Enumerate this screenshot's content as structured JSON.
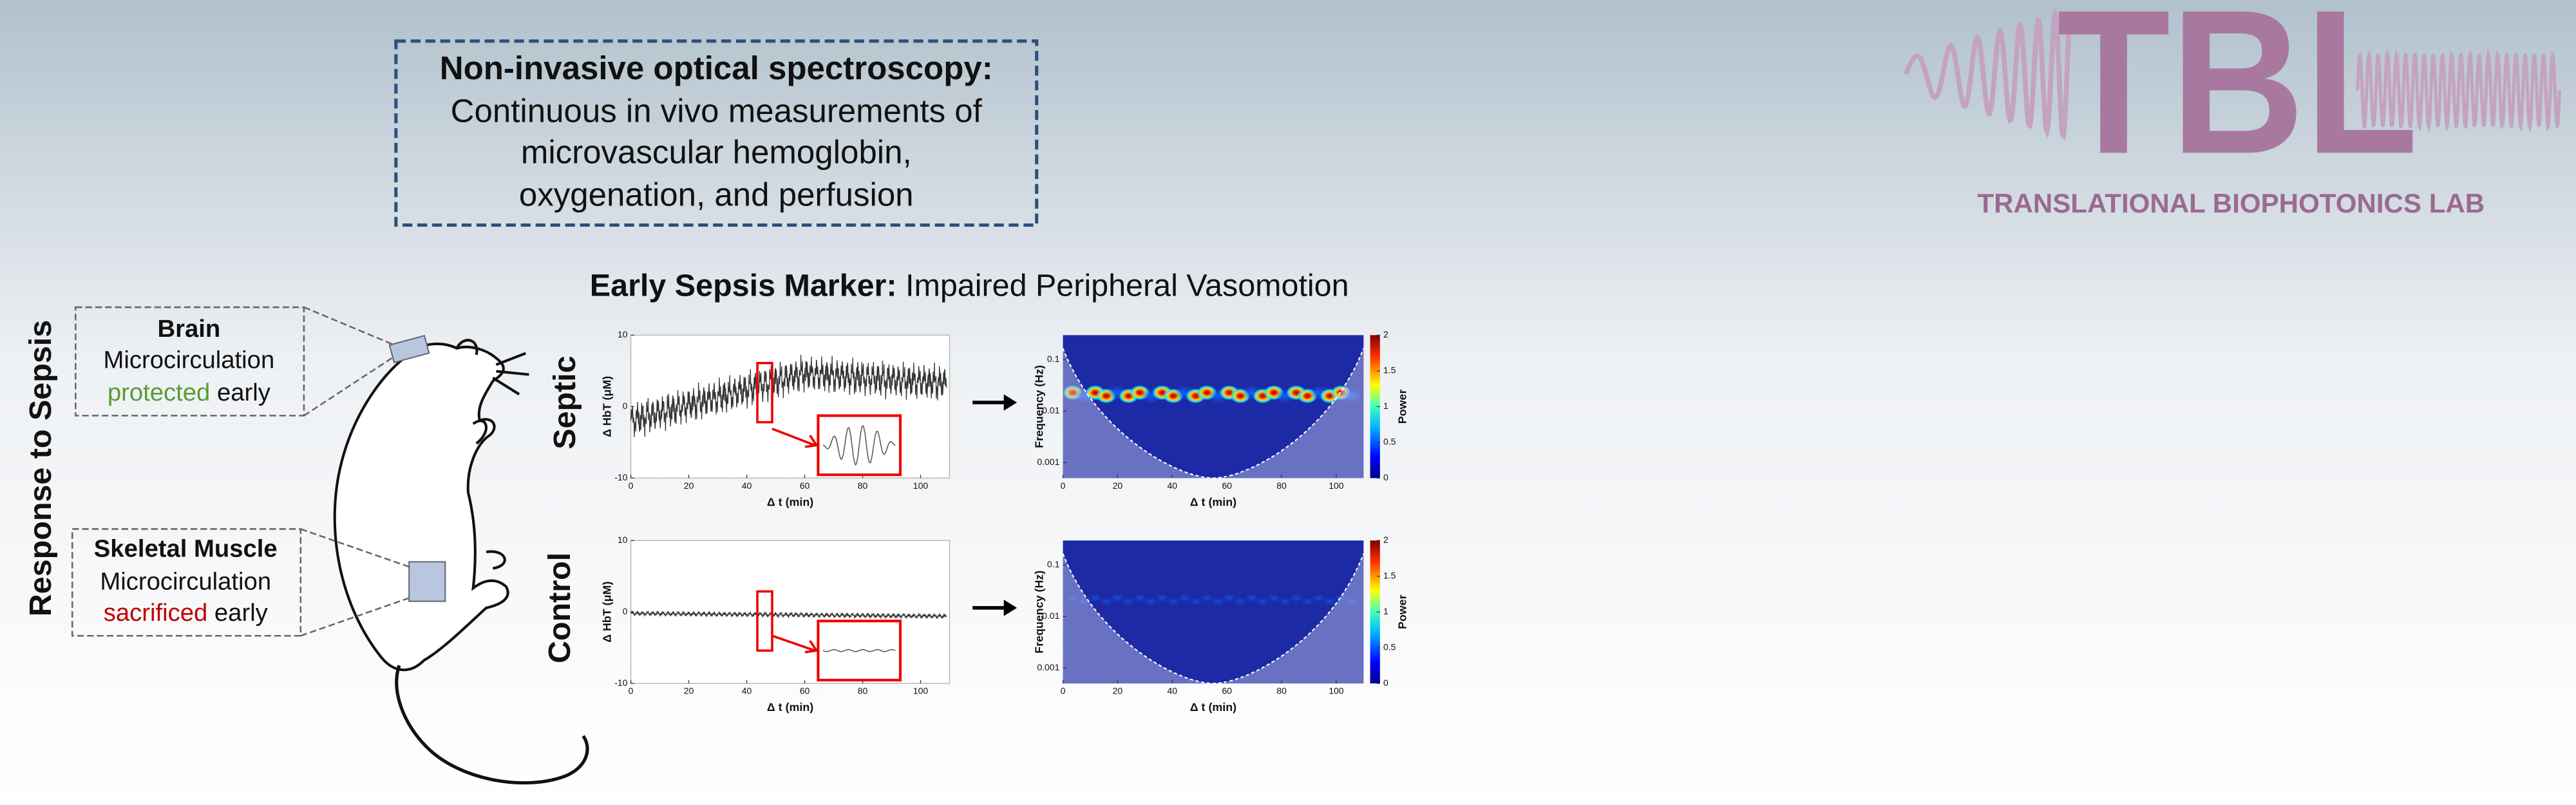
{
  "header": {
    "title": "Non-invasive optical spectroscopy:",
    "lines": [
      "Continuous in vivo measurements of",
      "microvascular hemoglobin,",
      "oxygenation, and perfusion"
    ]
  },
  "logo": {
    "letters": "TBL",
    "name": "TRANSLATIONAL BIOPHOTONICS LAB"
  },
  "side_label": "Response to Sepsis",
  "callouts": [
    {
      "title": "Brain",
      "subtitle": "Microcirculation",
      "status": "protected",
      "suffix": "early"
    },
    {
      "title": "Skeletal Muscle",
      "subtitle": "Microcirculation",
      "status": "sacrificed",
      "suffix": "early"
    }
  ],
  "panel_title": {
    "bold": "Early Sepsis Marker:",
    "rest": "Impaired Peripheral Vasomotion"
  },
  "rows": [
    {
      "label": "Septic"
    },
    {
      "label": "Control"
    }
  ],
  "plots": {
    "hbt": {
      "ylabel": "Δ HbT (μM)",
      "xlabel": "Δ t (min)",
      "xlim": [
        0,
        110
      ],
      "ylim": [
        -10,
        10
      ],
      "xticks": [
        0,
        20,
        40,
        60,
        80,
        100
      ],
      "yticks": [
        -10,
        0,
        10
      ]
    },
    "wavelet": {
      "ylabel": "Frequency (Hz)",
      "xlabel": "Δ t (min)",
      "xlim": [
        0,
        110
      ],
      "ylim": [
        0.0005,
        0.3
      ],
      "log_y": true,
      "xticks": [
        0,
        20,
        40,
        60,
        80,
        100
      ],
      "yticks": [
        0.001,
        0.01,
        0.1
      ],
      "colorbar": {
        "label": "Power",
        "lim": [
          0,
          2
        ],
        "ticks": [
          0,
          0.5,
          1,
          1.5,
          2
        ]
      }
    }
  }
}
